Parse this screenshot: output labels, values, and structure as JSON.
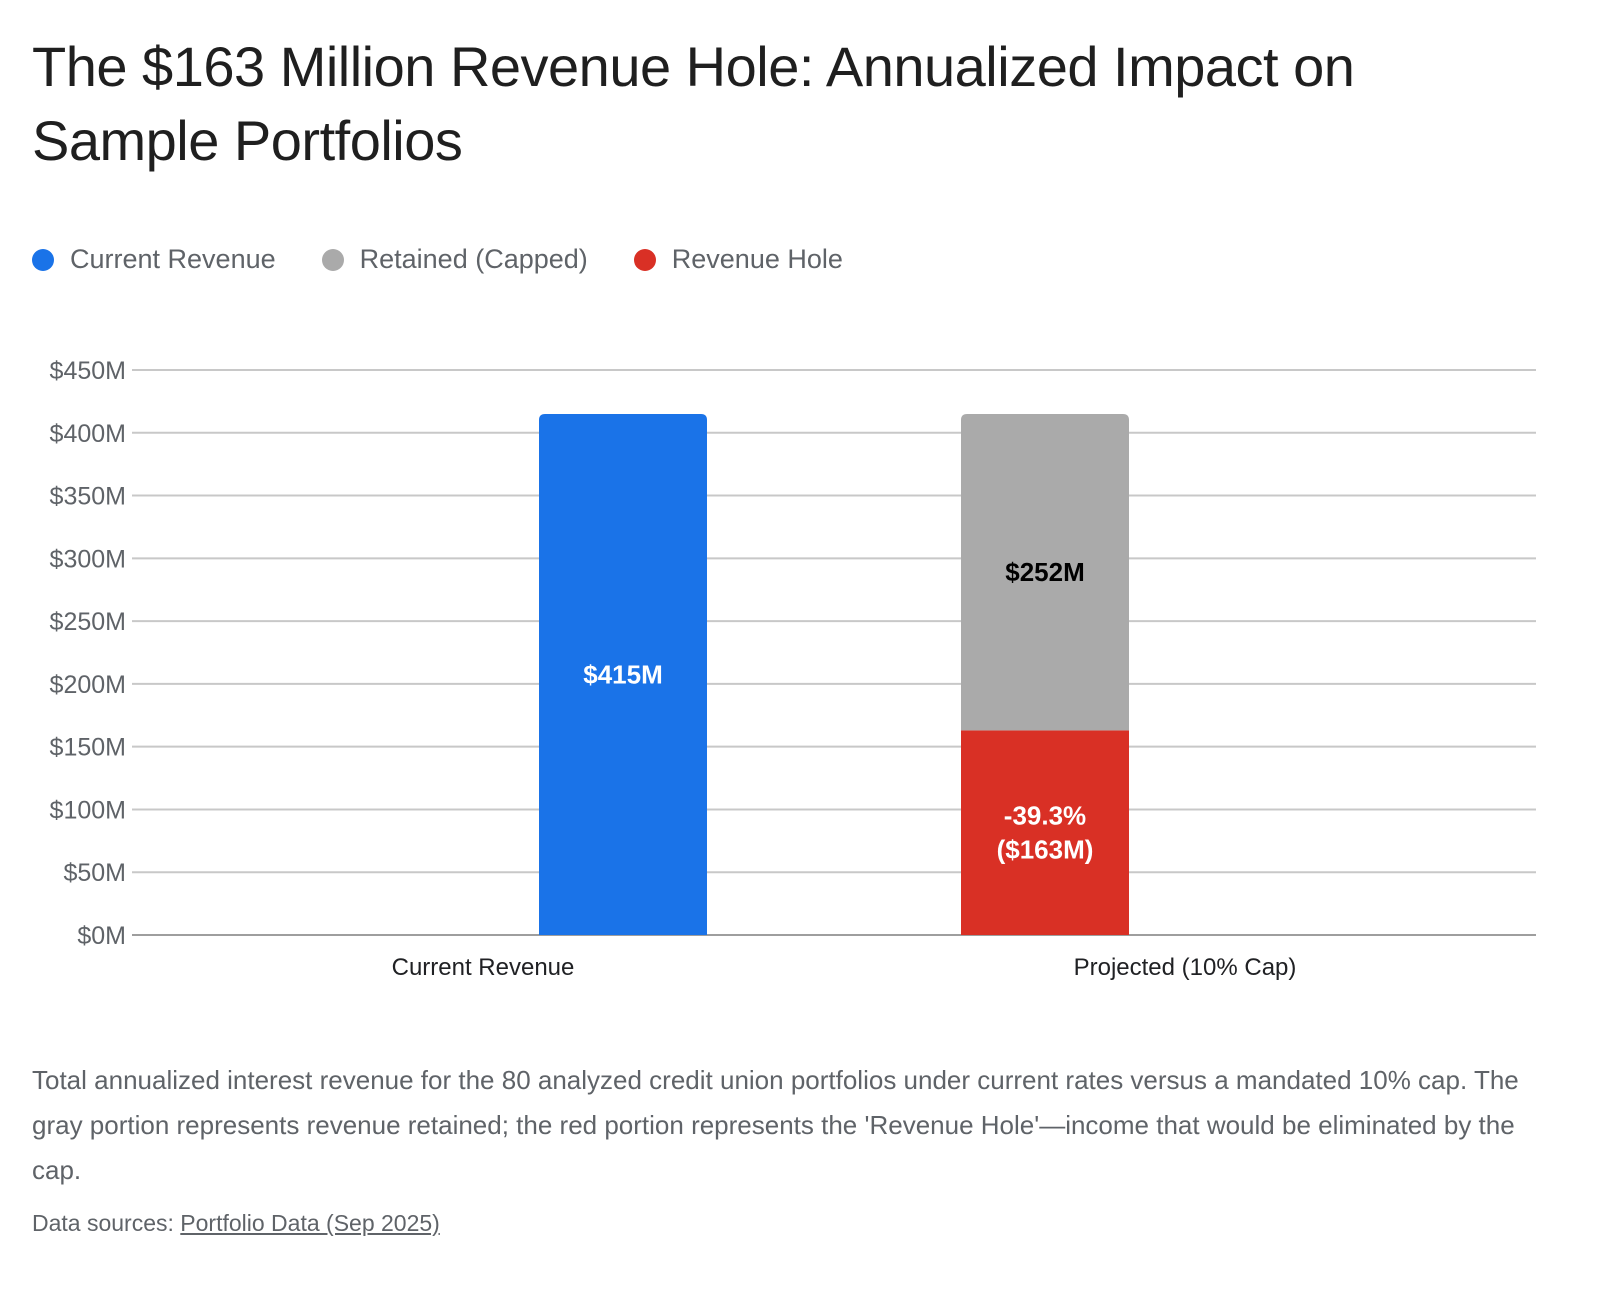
{
  "title": "The $163 Million Revenue Hole: Annualized Impact on Sample Portfolios",
  "legend": [
    {
      "label": "Current Revenue",
      "color": "#1a73e8"
    },
    {
      "label": "Retained (Capped)",
      "color": "#aaaaaa"
    },
    {
      "label": "Revenue Hole",
      "color": "#d93025"
    }
  ],
  "caption": "Total annualized interest revenue for the 80 analyzed credit union portfolios under current rates versus a mandated 10% cap. The gray portion represents revenue retained; the red portion represents the 'Revenue Hole'—income that would be eliminated by the cap.",
  "sources": {
    "prefix": "Data sources: ",
    "link_label": "Portfolio Data (Sep 2025)"
  },
  "chart_data": {
    "type": "bar",
    "stacked": true,
    "title": "The $163 Million Revenue Hole: Annualized Impact on Sample Portfolios",
    "xlabel": "",
    "ylabel": "",
    "categories": [
      "Current Revenue",
      "Projected (10% Cap)"
    ],
    "series": [
      {
        "name": "Current Revenue",
        "color": "#1a73e8",
        "values": [
          415,
          0
        ],
        "labels": [
          "$415M",
          ""
        ],
        "label_color": "#ffffff"
      },
      {
        "name": "Revenue Hole",
        "color": "#d93025",
        "values": [
          0,
          163
        ],
        "labels": [
          "",
          "-39.3%\n($163M)"
        ],
        "label_color": "#ffffff"
      },
      {
        "name": "Retained (Capped)",
        "color": "#aaaaaa",
        "values": [
          0,
          252
        ],
        "labels": [
          "",
          "$252M"
        ],
        "label_color": "#000000"
      }
    ],
    "stack_order": [
      "Revenue Hole",
      "Retained (Capped)"
    ],
    "ylim": [
      0,
      450
    ],
    "yticks": [
      0,
      50,
      100,
      150,
      200,
      250,
      300,
      350,
      400,
      450
    ],
    "ytick_labels": [
      "$0M",
      "$50M",
      "$100M",
      "$150M",
      "$200M",
      "$250M",
      "$300M",
      "$350M",
      "$400M",
      "$450M"
    ],
    "grid": true,
    "legend_position": "top-left",
    "units": "USD millions"
  }
}
